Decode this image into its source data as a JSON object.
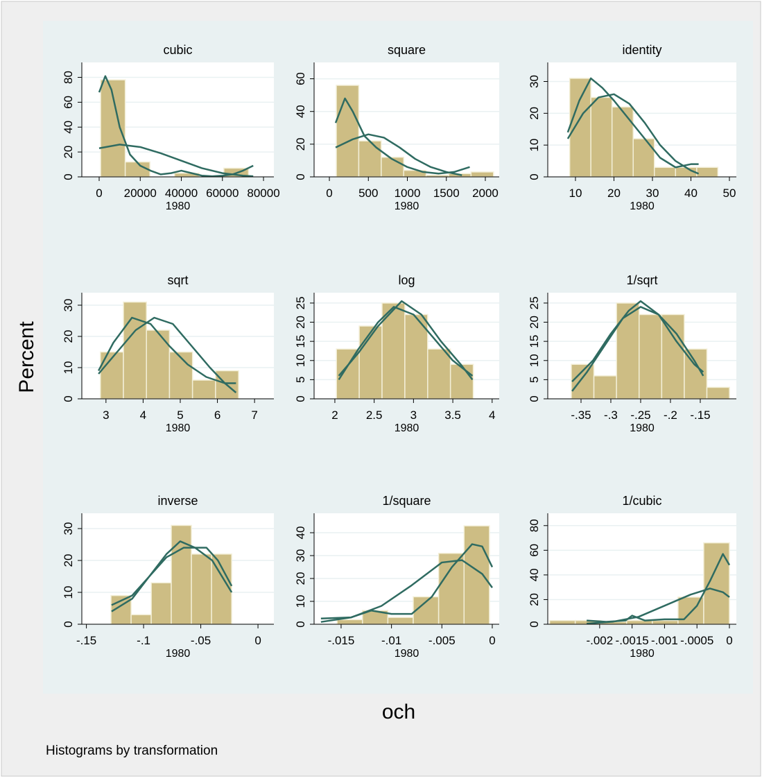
{
  "figure": {
    "y_title": "Percent",
    "x_title": "och",
    "note": "Histograms by transformation"
  },
  "chart_data": [
    {
      "type": "histogram",
      "title": "cubic",
      "xlabel": "1980",
      "bins": [
        700,
        12700,
        24700,
        36700,
        48700,
        60700,
        72700
      ],
      "values": [
        78,
        12,
        0,
        3,
        0,
        7
      ],
      "color": "#cdbd84",
      "series": [
        {
          "color": "#2f6b61",
          "x": [
            0,
            3000,
            6000,
            10000,
            15000,
            20000,
            25000,
            30000,
            35000,
            40000,
            45000,
            50000,
            55000,
            60000,
            65000,
            70000,
            75000
          ],
          "values": [
            68,
            81,
            70,
            40,
            18,
            9,
            5,
            2,
            3,
            5,
            3,
            1,
            0.5,
            1,
            2,
            5,
            9
          ]
        },
        {
          "color": "#2f6b61",
          "x": [
            0,
            10000,
            20000,
            30000,
            40000,
            50000,
            60000,
            70000,
            75000
          ],
          "values": [
            23,
            26,
            24,
            19,
            13,
            7,
            3,
            1,
            0.5
          ]
        }
      ],
      "xlim": [
        -8440,
        85050
      ],
      "ylim": [
        0,
        92
      ],
      "xticks": [
        0,
        20000,
        40000,
        60000,
        80000
      ],
      "yticks": [
        0,
        20,
        40,
        60,
        80
      ],
      "grid": true
    },
    {
      "type": "histogram",
      "title": "square",
      "xlabel": "1980",
      "bins": [
        89,
        377,
        665,
        953,
        1241,
        1529,
        1817,
        2105
      ],
      "values": [
        56,
        22,
        12,
        4,
        1,
        2,
        3
      ],
      "color": "#cdbd84",
      "series": [
        {
          "color": "#2f6b61",
          "x": [
            80,
            200,
            300,
            450,
            600,
            800,
            1000,
            1200,
            1400,
            1600,
            1800
          ],
          "values": [
            33,
            48,
            40,
            25,
            18,
            11,
            6,
            3,
            2,
            3,
            6
          ]
        },
        {
          "color": "#2f6b61",
          "x": [
            80,
            300,
            500,
            700,
            900,
            1100,
            1300,
            1500,
            1700
          ],
          "values": [
            18,
            23,
            26,
            24,
            18,
            11,
            6,
            3,
            1
          ]
        }
      ],
      "xlim": [
        -196,
        2178
      ],
      "ylim": [
        0,
        70
      ],
      "xticks": [
        0,
        500,
        1000,
        1500,
        2000
      ],
      "yticks": [
        0,
        20,
        40,
        60
      ],
      "grid": true
    },
    {
      "type": "histogram",
      "title": "identity",
      "xlabel": "1980",
      "bins": [
        8.5,
        14,
        19.5,
        25,
        30.5,
        36,
        41.5,
        47
      ],
      "values": [
        31,
        25,
        22,
        12,
        3,
        3,
        3
      ],
      "color": "#cdbd84",
      "series": [
        {
          "color": "#2f6b61",
          "x": [
            8,
            11,
            14,
            17,
            20,
            24,
            28,
            32,
            36,
            40,
            42
          ],
          "values": [
            14,
            24,
            31,
            28,
            24,
            18,
            12,
            6,
            3,
            4,
            4
          ]
        },
        {
          "color": "#2f6b61",
          "x": [
            8,
            12,
            16,
            20,
            24,
            28,
            32,
            36,
            40,
            42
          ],
          "values": [
            12,
            20,
            25,
            26,
            23,
            17,
            10,
            5,
            2,
            1
          ]
        }
      ],
      "xlim": [
        2.8,
        51.8
      ],
      "ylim": [
        0,
        36
      ],
      "xticks": [
        10,
        20,
        30,
        40,
        50
      ],
      "yticks": [
        0,
        10,
        20,
        30
      ],
      "grid": true
    },
    {
      "type": "histogram",
      "title": "sqrt",
      "xlabel": "1980",
      "bins": [
        2.85,
        3.47,
        4.09,
        4.71,
        5.33,
        5.95,
        6.57
      ],
      "values": [
        15,
        31,
        22,
        15,
        6,
        9
      ],
      "color": "#cdbd84",
      "series": [
        {
          "color": "#2f6b61",
          "x": [
            2.8,
            3.2,
            3.7,
            4.2,
            4.7,
            5.2,
            5.7,
            6.2,
            6.5
          ],
          "values": [
            9,
            18,
            26,
            24,
            17,
            11,
            7,
            5,
            5
          ]
        },
        {
          "color": "#2f6b61",
          "x": [
            2.8,
            3.3,
            3.8,
            4.3,
            4.8,
            5.3,
            5.8,
            6.2,
            6.5
          ],
          "values": [
            8,
            15,
            22,
            26,
            24,
            17,
            10,
            5,
            2
          ]
        }
      ],
      "xlim": [
        2.35,
        7.52
      ],
      "ylim": [
        0,
        34
      ],
      "xticks": [
        3,
        4,
        5,
        6,
        7
      ],
      "yticks": [
        0,
        10,
        20,
        30
      ],
      "grid": true
    },
    {
      "type": "histogram",
      "title": "log",
      "xlabel": "1980",
      "bins": [
        2.02,
        2.31,
        2.6,
        2.89,
        3.18,
        3.47,
        3.76
      ],
      "values": [
        13,
        19,
        25,
        22,
        13,
        9
      ],
      "color": "#cdbd84",
      "series": [
        {
          "color": "#2f6b61",
          "x": [
            2.05,
            2.3,
            2.55,
            2.75,
            3.0,
            3.25,
            3.5,
            3.75
          ],
          "values": [
            5,
            13,
            20,
            24,
            22,
            16,
            10,
            6
          ]
        },
        {
          "color": "#2f6b61",
          "x": [
            2.05,
            2.3,
            2.55,
            2.85,
            3.1,
            3.35,
            3.6,
            3.75
          ],
          "values": [
            6,
            12,
            19,
            25.5,
            22,
            15,
            9,
            5
          ]
        }
      ],
      "xlim": [
        1.736,
        4.09
      ],
      "ylim": [
        0,
        27.7
      ],
      "xticks": [
        2,
        2.5,
        3,
        3.5,
        4
      ],
      "yticks": [
        0,
        5,
        10,
        15,
        20,
        25
      ],
      "grid": true
    },
    {
      "type": "histogram",
      "title": "1/sqrt",
      "xlabel": "1980",
      "bins": [
        -0.3663,
        -0.3284,
        -0.2905,
        -0.2526,
        -0.2147,
        -0.1768,
        -0.1389,
        -0.101
      ],
      "values": [
        9,
        6,
        25,
        22,
        22,
        13,
        3
      ],
      "color": "#cdbd84",
      "series": [
        {
          "color": "#2f6b61",
          "x": [
            -0.365,
            -0.34,
            -0.31,
            -0.28,
            -0.25,
            -0.22,
            -0.19,
            -0.16,
            -0.145
          ],
          "values": [
            2,
            7,
            14,
            21,
            24,
            22,
            17,
            10,
            6
          ]
        },
        {
          "color": "#2f6b61",
          "x": [
            -0.365,
            -0.33,
            -0.3,
            -0.27,
            -0.25,
            -0.22,
            -0.19,
            -0.16,
            -0.145
          ],
          "values": [
            4.5,
            10,
            17,
            23,
            25.5,
            22,
            15,
            9,
            7
          ]
        }
      ],
      "xlim": [
        -0.4058,
        -0.0895
      ],
      "ylim": [
        0,
        27.7
      ],
      "xticks": [
        {
          "value": -0.35,
          "label": "-.35"
        },
        {
          "value": -0.3,
          "label": "-.3"
        },
        {
          "value": -0.25,
          "label": "-.25"
        },
        {
          "value": -0.2,
          "label": "-.2"
        },
        {
          "value": -0.15,
          "label": "-.15"
        }
      ],
      "yticks": [
        0,
        5,
        10,
        15,
        20,
        25
      ],
      "grid": true
    },
    {
      "type": "histogram",
      "title": "inverse",
      "xlabel": "1980",
      "bins": [
        -0.1285,
        -0.1109,
        -0.0933,
        -0.0758,
        -0.0582,
        -0.0406,
        -0.023
      ],
      "values": [
        9,
        3,
        13,
        31,
        22,
        22
      ],
      "color": "#cdbd84",
      "series": [
        {
          "color": "#2f6b61",
          "x": [
            -0.128,
            -0.11,
            -0.095,
            -0.08,
            -0.068,
            -0.055,
            -0.04,
            -0.023
          ],
          "values": [
            6,
            9,
            15,
            22,
            26,
            24,
            20,
            10
          ]
        },
        {
          "color": "#2f6b61",
          "x": [
            -0.128,
            -0.11,
            -0.095,
            -0.08,
            -0.065,
            -0.045,
            -0.035,
            -0.023
          ],
          "values": [
            4,
            8,
            15,
            21,
            24,
            24,
            20,
            12
          ]
        }
      ],
      "xlim": [
        -0.154,
        0.0139
      ],
      "ylim": [
        0,
        34.8
      ],
      "xticks": [
        {
          "value": -0.15,
          "label": "-.15"
        },
        {
          "value": -0.1,
          "label": "-.1"
        },
        {
          "value": -0.05,
          "label": "-.05"
        },
        0
      ],
      "yticks": [
        0,
        10,
        20,
        30
      ],
      "grid": true
    },
    {
      "type": "histogram",
      "title": "1/square",
      "xlabel": "1980",
      "bins": [
        -0.0154,
        -0.01288,
        -0.01036,
        -0.00784,
        -0.00532,
        -0.0028,
        -0.00028
      ],
      "values": [
        2,
        6,
        3,
        12,
        31,
        43
      ],
      "color": "#cdbd84",
      "series": [
        {
          "color": "#2f6b61",
          "x": [
            -0.017,
            -0.014,
            -0.012,
            -0.01,
            -0.008,
            -0.006,
            -0.004,
            -0.002,
            -0.001,
            0
          ],
          "values": [
            2.5,
            3,
            6,
            4.5,
            4.5,
            12,
            25,
            35,
            34,
            25
          ]
        },
        {
          "color": "#2f6b61",
          "x": [
            -0.017,
            -0.014,
            -0.011,
            -0.008,
            -0.005,
            -0.003,
            -0.001,
            0
          ],
          "values": [
            1,
            3,
            8,
            17,
            27,
            28,
            22,
            16
          ]
        }
      ],
      "xlim": [
        -0.01768,
        0.00069
      ],
      "ylim": [
        0,
        48.5
      ],
      "xticks": [
        {
          "value": -0.015,
          "label": "-.015"
        },
        {
          "value": -0.01,
          "label": "-.01"
        },
        {
          "value": -0.005,
          "label": "-.005"
        },
        0
      ],
      "yticks": [
        0,
        10,
        20,
        30,
        40
      ],
      "grid": true
    },
    {
      "type": "histogram",
      "title": "1/cubic",
      "xlabel": "1980",
      "bins": [
        -0.002772,
        -0.002376,
        -0.00198,
        -0.001584,
        -0.001188,
        -0.000792,
        -0.000396,
        0
      ],
      "values": [
        3,
        3,
        2,
        3,
        3,
        22,
        66
      ],
      "color": "#cdbd84",
      "series": [
        {
          "color": "#2f6b61",
          "x": [
            -0.0022,
            -0.0019,
            -0.0016,
            -0.0015,
            -0.0013,
            -0.001,
            -0.0007,
            -0.0005,
            -0.0003,
            -0.0001,
            0
          ],
          "values": [
            3,
            2,
            3,
            7,
            3,
            4,
            4,
            15,
            35,
            57,
            48
          ]
        },
        {
          "color": "#2f6b61",
          "x": [
            -0.0022,
            -0.0018,
            -0.0014,
            -0.001,
            -0.0006,
            -0.0003,
            -0.0001,
            0
          ],
          "values": [
            0.5,
            2,
            6,
            15,
            24,
            29,
            26,
            22
          ]
        }
      ],
      "xlim": [
        -0.0028,
        0.000107
      ],
      "ylim": [
        0,
        90
      ],
      "xticks": [
        {
          "value": -0.002,
          "label": "-.002"
        },
        {
          "value": -0.0015,
          "label": "-.0015"
        },
        {
          "value": -0.001,
          "label": "-.001"
        },
        {
          "value": -0.0005,
          "label": "-.0005"
        },
        0
      ],
      "yticks": [
        0,
        20,
        40,
        60,
        80
      ],
      "grid": true
    }
  ]
}
